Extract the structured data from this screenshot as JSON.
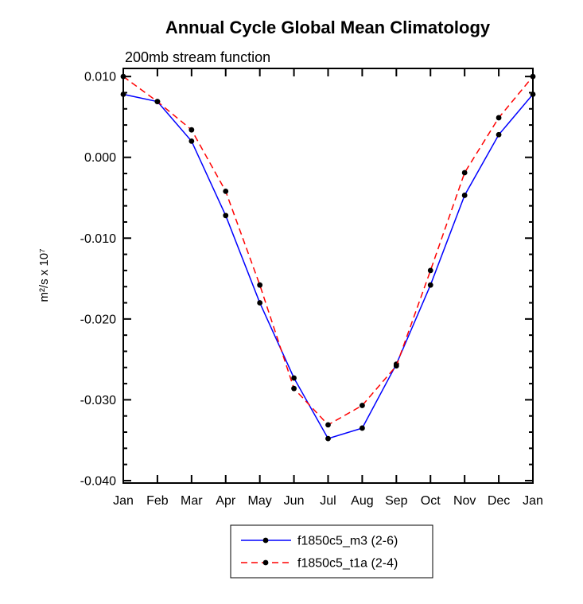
{
  "chart_data": {
    "type": "line",
    "title": "Annual Cycle Global Mean Climatology",
    "subtitle": "200mb stream function",
    "xlabel": "",
    "ylabel": "m²/s x 10⁷",
    "categories": [
      "Jan",
      "Feb",
      "Mar",
      "Apr",
      "May",
      "Jun",
      "Jul",
      "Aug",
      "Sep",
      "Oct",
      "Nov",
      "Dec",
      "Jan"
    ],
    "ylim": [
      -0.0403,
      0.011
    ],
    "yticks": {
      "values": [
        0.01,
        0.0,
        -0.01,
        -0.02,
        -0.03,
        -0.04
      ],
      "labels": [
        "0.010",
        "0.000",
        "-0.010",
        "-0.020",
        "-0.030",
        "-0.040"
      ]
    },
    "yminor_step": 0.002,
    "grid": false,
    "legend_position": "bottom-center",
    "frame_color": "#000000",
    "series": [
      {
        "name": "f1850c5_m3 (2-6)",
        "color": "#0000ff",
        "dash": "solid",
        "marker": {
          "shape": "circle",
          "color": "#000000"
        },
        "values": [
          0.0078,
          0.0069,
          0.002,
          -0.0072,
          -0.018,
          -0.0273,
          -0.0348,
          -0.0335,
          -0.0256,
          -0.0158,
          -0.0047,
          0.0028,
          0.0078
        ]
      },
      {
        "name": "f1850c5_t1a (2-4)",
        "color": "#ff0000",
        "dash": "dashed",
        "marker": {
          "shape": "circle",
          "color": "#000000"
        },
        "values": [
          0.01,
          0.0069,
          0.0034,
          -0.0042,
          -0.0158,
          -0.0286,
          -0.0331,
          -0.0307,
          -0.0258,
          -0.014,
          -0.0019,
          0.0049,
          0.01
        ]
      }
    ]
  }
}
